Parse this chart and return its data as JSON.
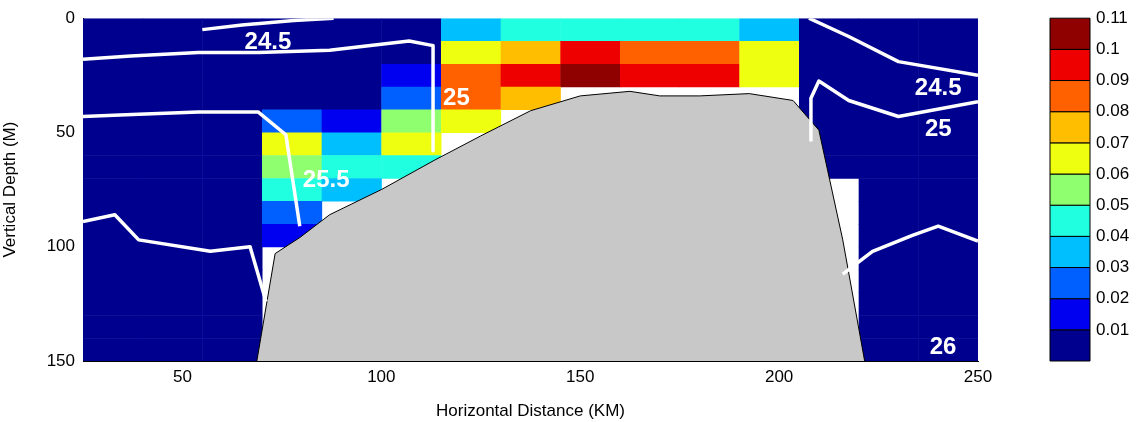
{
  "chart_data": {
    "type": "heatmap",
    "xlabel": "Horizontal Distance (KM)",
    "ylabel": "Vertical Depth (M)",
    "x": [
      32.5,
      47.5,
      62.5,
      77.5,
      92.5,
      107.5,
      122.5,
      137.5,
      152.5,
      167.5,
      182.5,
      197.5,
      212.5,
      227.5,
      242.5
    ],
    "y": [
      5,
      15,
      25,
      35,
      45,
      55,
      65,
      75,
      85,
      95,
      105,
      115,
      125,
      135,
      145
    ],
    "cells": [
      [
        0.005,
        0.005,
        0.005,
        0.005,
        0.005,
        0.005,
        0.035,
        0.045,
        0.045,
        0.045,
        0.045,
        0.035,
        0.005,
        0.005,
        0.005
      ],
      [
        0.005,
        0.005,
        0.005,
        0.005,
        0.005,
        0.005,
        0.065,
        0.075,
        0.095,
        0.085,
        0.085,
        0.065,
        0.005,
        0.005,
        0.005
      ],
      [
        0.005,
        0.005,
        0.005,
        0.005,
        0.005,
        0.015,
        0.085,
        0.095,
        0.105,
        0.095,
        0.095,
        0.065,
        0.005,
        0.005,
        0.005
      ],
      [
        0.005,
        0.005,
        0.005,
        0.005,
        0.005,
        0.025,
        0.085,
        0.075,
        null,
        null,
        null,
        null,
        0.005,
        0.005,
        0.005
      ],
      [
        0.005,
        0.005,
        0.005,
        0.025,
        0.015,
        0.055,
        0.065,
        null,
        null,
        null,
        null,
        null,
        0.005,
        0.005,
        0.005
      ],
      [
        0.005,
        0.005,
        0.005,
        0.065,
        0.035,
        0.065,
        null,
        null,
        null,
        null,
        null,
        null,
        0.005,
        0.005,
        0.005
      ],
      [
        0.005,
        0.005,
        0.005,
        0.055,
        0.045,
        0.045,
        null,
        null,
        null,
        null,
        null,
        null,
        0.005,
        0.005,
        0.005
      ],
      [
        0.005,
        0.005,
        0.005,
        0.045,
        0.035,
        null,
        null,
        null,
        null,
        null,
        null,
        null,
        null,
        0.005,
        0.005
      ],
      [
        0.005,
        0.005,
        0.005,
        0.025,
        null,
        null,
        null,
        null,
        null,
        null,
        null,
        null,
        null,
        0.005,
        0.005
      ],
      [
        0.005,
        0.005,
        0.005,
        0.015,
        null,
        null,
        null,
        null,
        null,
        null,
        null,
        null,
        null,
        0.005,
        0.005
      ],
      [
        0.005,
        0.005,
        0.005,
        null,
        null,
        null,
        null,
        null,
        null,
        null,
        null,
        null,
        null,
        0.005,
        0.005
      ],
      [
        0.005,
        0.005,
        0.005,
        null,
        null,
        null,
        null,
        null,
        null,
        null,
        null,
        null,
        null,
        0.005,
        0.005
      ],
      [
        0.005,
        0.005,
        0.005,
        null,
        null,
        null,
        null,
        null,
        null,
        null,
        null,
        null,
        null,
        0.005,
        0.005
      ],
      [
        0.005,
        0.005,
        0.005,
        null,
        null,
        null,
        null,
        null,
        null,
        null,
        null,
        null,
        null,
        0.005,
        0.005
      ],
      [
        0.005,
        0.005,
        0.005,
        null,
        null,
        null,
        null,
        null,
        null,
        null,
        null,
        null,
        null,
        0.005,
        0.005
      ]
    ],
    "colors": [
      "#00008f",
      "#0000f0",
      "#0060ff",
      "#00bfff",
      "#20ffdf",
      "#8fff70",
      "#efff10",
      "#ffbf00",
      "#ff6000",
      "#ef0000",
      "#8f0000"
    ],
    "clim": [
      0,
      0.11
    ],
    "cticks": [
      0.01,
      0.02,
      0.03,
      0.04,
      0.05,
      0.06,
      0.07,
      0.08,
      0.09,
      0.1,
      0.11
    ],
    "xlim": [
      25,
      250
    ],
    "ylim": [
      150,
      0
    ],
    "xticks": [
      50,
      100,
      150,
      200,
      250
    ],
    "yticks": [
      0,
      50,
      100,
      150
    ],
    "series": [
      {
        "type": "area",
        "color": "#c8c8c8",
        "x": [
          68.7,
          73.3,
          79.5,
          87,
          100,
          113.5,
          125,
          137.5,
          150,
          162.5,
          170,
          180,
          192.5,
          203.5,
          210,
          216,
          221.5
        ],
        "values": [
          150,
          103,
          96,
          86,
          75,
          62,
          51.5,
          40.5,
          34,
          32,
          34,
          34,
          33,
          36,
          49,
          97,
          150
        ]
      },
      {
        "type": "line",
        "name": "24.5",
        "color": "#ffffff",
        "x": [
          55,
          65,
          78,
          88
        ],
        "values": [
          5,
          3,
          1,
          0
        ]
      },
      {
        "type": "line",
        "name": "25",
        "color": "#ffffff",
        "x": [
          25,
          37,
          54,
          69,
          87,
          107,
          113,
          113
        ],
        "values": [
          18,
          16.5,
          15,
          15,
          14,
          10,
          12,
          58
        ]
      },
      {
        "type": "line",
        "name": "25.5",
        "color": "#ffffff",
        "x": [
          25,
          39,
          54,
          69,
          76,
          79.5
        ],
        "values": [
          43,
          42,
          41,
          41,
          51,
          91
        ]
      },
      {
        "type": "line",
        "color": "#ffffff",
        "x": [
          25,
          33,
          39,
          57,
          67,
          71
        ],
        "values": [
          89,
          86,
          97,
          102,
          100,
          124
        ]
      },
      {
        "type": "line",
        "name": "24.5",
        "color": "#ffffff",
        "x": [
          207.5,
          217.5,
          230,
          250
        ],
        "values": [
          0,
          8,
          19,
          25
        ]
      },
      {
        "type": "line",
        "name": "25",
        "color": "#ffffff",
        "x": [
          208,
          208,
          210,
          217.5,
          230,
          250
        ],
        "values": [
          54,
          35,
          27.5,
          36,
          43,
          36.5
        ]
      },
      {
        "type": "line",
        "color": "#ffffff",
        "x": [
          216,
          223.5,
          233.5,
          240,
          250
        ],
        "values": [
          112,
          102,
          95,
          91,
          97.5
        ]
      }
    ],
    "annotations": [
      "26"
    ]
  }
}
